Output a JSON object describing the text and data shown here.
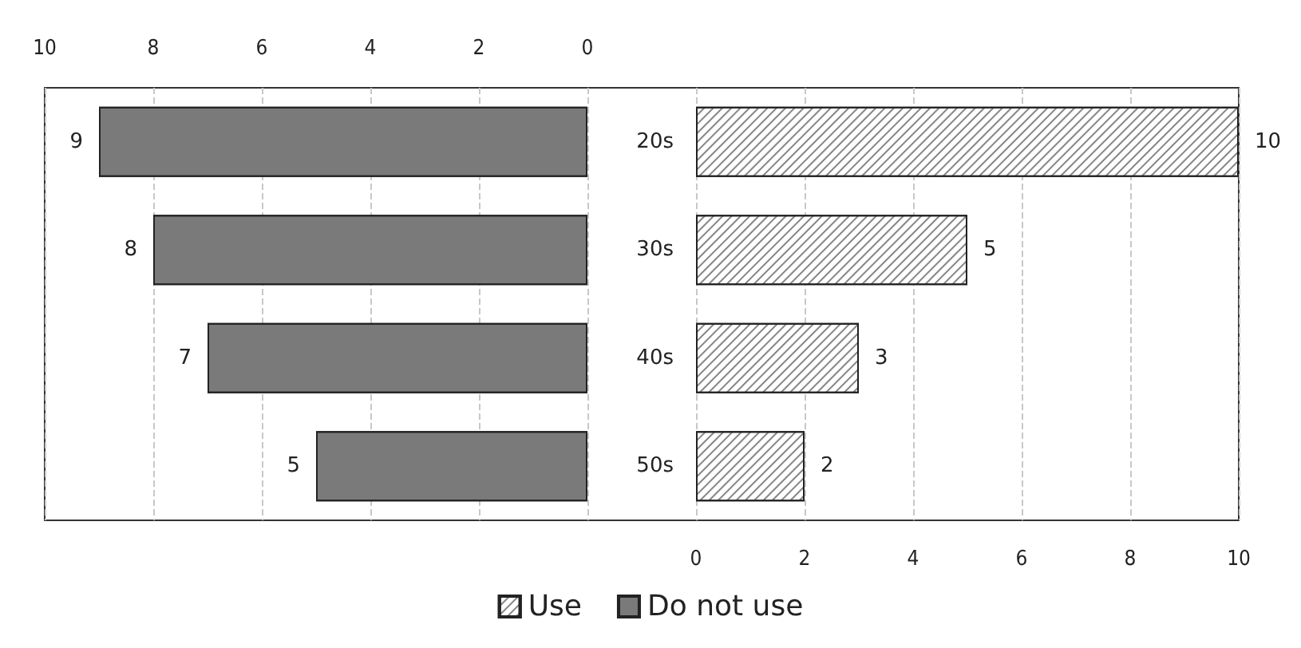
{
  "chart_data": [
    {
      "type": "bar",
      "orientation": "horizontal",
      "categories": [
        null,
        null,
        null,
        null
      ],
      "series": [
        {
          "name": "Do not use",
          "color": "#7a7a7a",
          "values": [
            9,
            8,
            7,
            5
          ]
        }
      ],
      "xlim": [
        10,
        0
      ],
      "xticks": [
        10,
        8,
        6,
        4,
        2,
        0
      ],
      "tick_labels": "x",
      "grid": "x",
      "data_labels": true,
      "legend": "bottom"
    },
    {
      "type": "bar",
      "orientation": "horizontal",
      "categories": [
        "20s",
        "30s",
        "40s",
        "50s"
      ],
      "series": [
        {
          "name": "Use",
          "color": "#ffffff",
          "values": [
            10,
            5,
            3,
            2
          ]
        }
      ],
      "xlim": [
        0,
        10
      ],
      "xticks": [
        0,
        2,
        4,
        6,
        8,
        10
      ],
      "grid": "x",
      "data_labels": true,
      "legend": "bottom"
    }
  ]
}
